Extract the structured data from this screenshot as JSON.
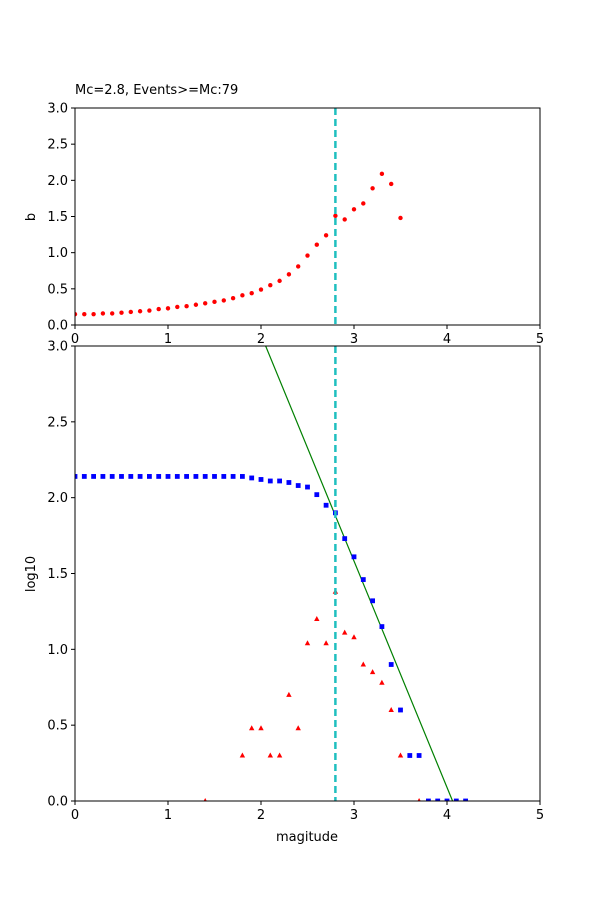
{
  "chart_data": [
    {
      "type": "scatter",
      "title": "Mc=2.8, Events>=Mc:79",
      "xlabel": "",
      "ylabel": "b",
      "xlim": [
        0,
        5
      ],
      "ylim": [
        0,
        3
      ],
      "xticks": [
        "0",
        "1",
        "2",
        "3",
        "4",
        "5"
      ],
      "yticks": [
        "0.0",
        "0.5",
        "1.0",
        "1.5",
        "2.0",
        "2.5",
        "3.0"
      ],
      "grid": false,
      "mc_line": {
        "x": 2.8,
        "color": "#1fbfbf",
        "style": "dashed"
      },
      "series": [
        {
          "marker": "circle",
          "color": "#ff0000",
          "x": [
            0.0,
            0.1,
            0.2,
            0.3,
            0.4,
            0.5,
            0.6,
            0.7,
            0.8,
            0.9,
            1.0,
            1.1,
            1.2,
            1.3,
            1.4,
            1.5,
            1.6,
            1.7,
            1.8,
            1.9,
            2.0,
            2.1,
            2.2,
            2.3,
            2.4,
            2.5,
            2.6,
            2.7,
            2.8,
            2.9,
            3.0,
            3.1,
            3.2,
            3.3,
            3.4,
            3.5
          ],
          "y": [
            0.15,
            0.15,
            0.15,
            0.16,
            0.16,
            0.17,
            0.18,
            0.19,
            0.2,
            0.22,
            0.23,
            0.25,
            0.26,
            0.28,
            0.3,
            0.32,
            0.34,
            0.37,
            0.41,
            0.44,
            0.49,
            0.55,
            0.61,
            0.7,
            0.81,
            0.96,
            1.11,
            1.24,
            1.51,
            1.46,
            1.6,
            1.68,
            1.89,
            2.09,
            1.95,
            1.48
          ]
        }
      ]
    },
    {
      "type": "scatter",
      "title": "",
      "xlabel": "magitude",
      "ylabel": "log10",
      "xlim": [
        0,
        5
      ],
      "ylim": [
        0,
        3
      ],
      "xticks": [
        "0",
        "1",
        "2",
        "3",
        "4",
        "5"
      ],
      "yticks": [
        "0.0",
        "0.5",
        "1.0",
        "1.5",
        "2.0",
        "2.5",
        "3.0"
      ],
      "grid": false,
      "mc_line": {
        "x": 2.8,
        "color": "#1fbfbf",
        "style": "dashed"
      },
      "fit_line": {
        "x": [
          2.05,
          4.06
        ],
        "y": [
          3.0,
          0.0
        ],
        "color": "#008000"
      },
      "series": [
        {
          "marker": "square",
          "color": "#0000ff",
          "x": [
            0.0,
            0.1,
            0.2,
            0.3,
            0.4,
            0.5,
            0.6,
            0.7,
            0.8,
            0.9,
            1.0,
            1.1,
            1.2,
            1.3,
            1.4,
            1.5,
            1.6,
            1.7,
            1.8,
            1.9,
            2.0,
            2.1,
            2.2,
            2.3,
            2.4,
            2.5,
            2.6,
            2.7,
            2.8,
            2.9,
            3.0,
            3.1,
            3.2,
            3.3,
            3.4,
            3.5,
            3.6,
            3.7,
            3.8,
            3.9,
            4.0,
            4.1,
            4.2
          ],
          "y": [
            2.14,
            2.14,
            2.14,
            2.14,
            2.14,
            2.14,
            2.14,
            2.14,
            2.14,
            2.14,
            2.14,
            2.14,
            2.14,
            2.14,
            2.14,
            2.14,
            2.14,
            2.14,
            2.14,
            2.13,
            2.12,
            2.11,
            2.11,
            2.1,
            2.08,
            2.07,
            2.02,
            1.95,
            1.9,
            1.73,
            1.61,
            1.46,
            1.32,
            1.15,
            0.9,
            0.6,
            0.3,
            0.3,
            0.0,
            0.0,
            0.0,
            0.0,
            0.0
          ]
        },
        {
          "marker": "triangle",
          "color": "#ff0000",
          "x": [
            1.4,
            1.8,
            1.9,
            2.0,
            2.1,
            2.2,
            2.3,
            2.4,
            2.5,
            2.6,
            2.7,
            2.8,
            2.9,
            3.0,
            3.1,
            3.2,
            3.3,
            3.4,
            3.5,
            3.7
          ],
          "y": [
            0.0,
            0.3,
            0.48,
            0.48,
            0.3,
            0.3,
            0.7,
            0.48,
            1.04,
            1.2,
            1.04,
            1.38,
            1.11,
            1.08,
            0.9,
            0.85,
            0.78,
            0.6,
            0.3,
            0.0
          ]
        }
      ]
    }
  ]
}
